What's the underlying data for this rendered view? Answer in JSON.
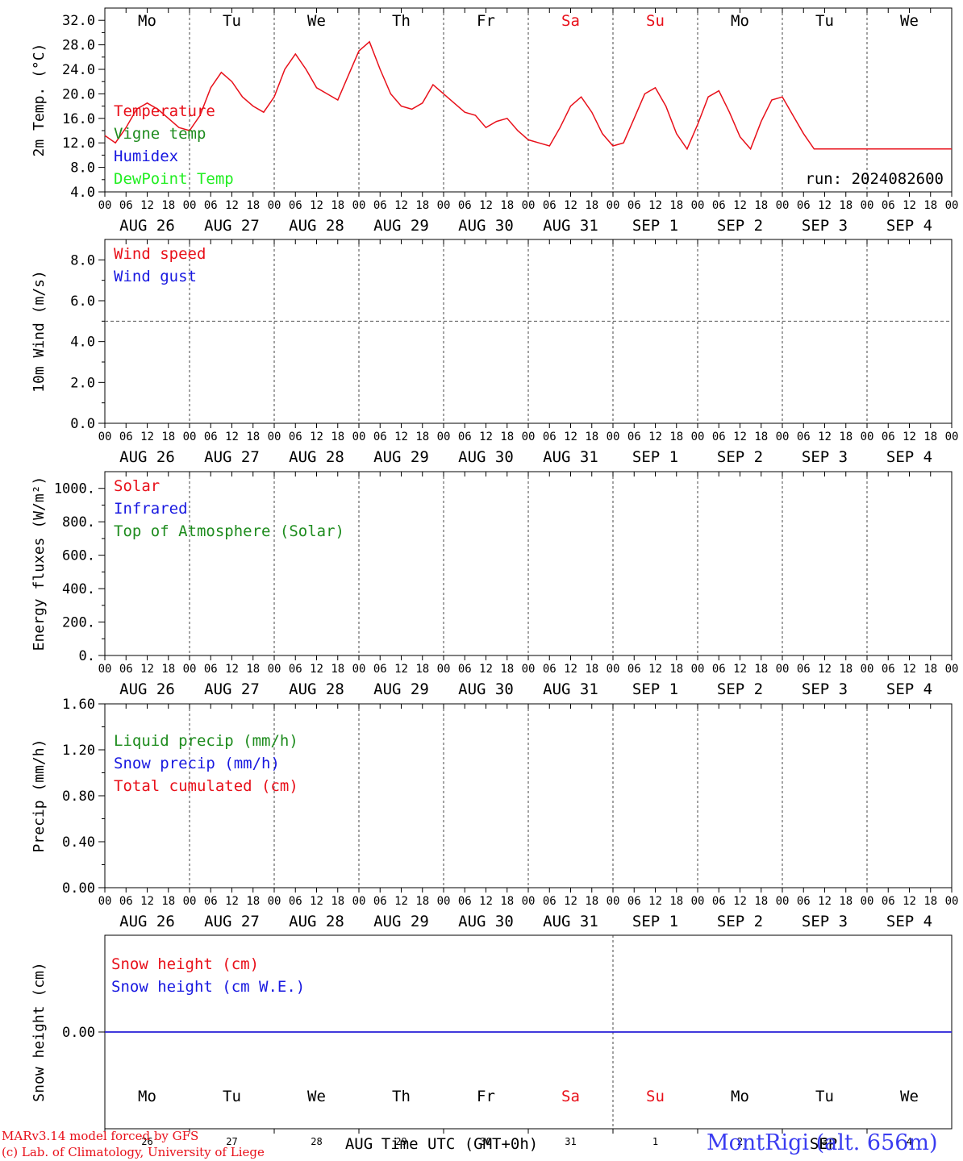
{
  "footer": {
    "model_line": "MARv3.14 model forced by GFS",
    "lab_line": "(c) Lab. of Climatology, University of Liege",
    "station": "MontRigi (alt. 656m)"
  },
  "chart_data": [
    {
      "type": "line",
      "ylabel": "2m Temp. (°C)",
      "ylim": [
        4,
        34
      ],
      "yticks": [
        "4.0",
        "8.0",
        "12.0",
        "16.0",
        "20.0",
        "24.0",
        "28.0",
        "32.0"
      ],
      "yticks_at": [
        4,
        8,
        12,
        16,
        20,
        24,
        28,
        32
      ],
      "run_label": "run: 2024082600",
      "legend_placement": "left",
      "day_names_top": true,
      "hour_ticks": [
        "00",
        "06",
        "12",
        "18"
      ],
      "date_labels": [
        "AUG 26",
        "AUG 27",
        "AUG 28",
        "AUG 29",
        "AUG 30",
        "AUG 31",
        "SEP  1",
        "SEP  2",
        "SEP  3",
        "SEP  4"
      ],
      "series": [
        {
          "name": "Temperature",
          "color": "#e8101a",
          "x": [
            0,
            3,
            6,
            9,
            12,
            15,
            18,
            21,
            24,
            27,
            30,
            33,
            36,
            39,
            42,
            45,
            48,
            51,
            54,
            57,
            60,
            63,
            66,
            69,
            72,
            75,
            78,
            81,
            84,
            87,
            90,
            93,
            96,
            99,
            102,
            105,
            108,
            111,
            114,
            117,
            120,
            123,
            126,
            129,
            132,
            135,
            138,
            141,
            144,
            147,
            150,
            153,
            156,
            159,
            162,
            165,
            168,
            171,
            174,
            177,
            180,
            183,
            186,
            189,
            192,
            195,
            198,
            201,
            204,
            207,
            210,
            213,
            216,
            219,
            222,
            225,
            228,
            231,
            234,
            237,
            240
          ],
          "y": [
            13.2,
            12.0,
            14.5,
            17.5,
            18.5,
            17.5,
            16.0,
            14.5,
            14.0,
            16.5,
            21.0,
            23.5,
            22.0,
            19.5,
            18.0,
            17.0,
            19.5,
            24.0,
            26.5,
            24.0,
            21.0,
            20.0,
            19.0,
            23.0,
            27.0,
            28.5,
            24.0,
            20.0,
            18.0,
            17.5,
            18.5,
            21.5,
            20.0,
            18.5,
            17.0,
            16.5,
            14.5,
            15.5,
            16.0,
            14.0,
            12.5,
            12.0,
            11.5,
            14.5,
            18.0,
            19.5,
            17.0,
            13.5,
            11.5,
            12.0,
            16.0,
            20.0,
            21.0,
            18.0,
            13.5,
            11.0,
            15.0,
            19.5,
            20.5,
            17.0,
            13.0,
            11.0,
            15.5,
            19.0,
            19.5,
            16.5,
            13.5,
            11.0,
            11.0,
            11.0,
            11.0,
            11.0,
            11.0,
            11.0,
            11.0,
            11.0,
            11.0,
            11.0,
            11.0,
            11.0,
            11.0
          ]
        },
        {
          "name": "Vigne temp",
          "color": "#1e8c1e",
          "x": [],
          "y": []
        },
        {
          "name": "Humidex",
          "color": "#1818e0",
          "x": [],
          "y": []
        },
        {
          "name": "DewPoint Temp",
          "color": "#22ee22",
          "x": [],
          "y": []
        }
      ]
    },
    {
      "type": "line",
      "ylabel": "10m Wind (m/s)",
      "ylim": [
        0,
        9
      ],
      "yticks": [
        "0.0",
        "2.0",
        "4.0",
        "6.0",
        "8.0"
      ],
      "yticks_at": [
        0,
        2,
        4,
        6,
        8
      ],
      "ref_line": 5,
      "hour_ticks": [
        "00",
        "06",
        "12",
        "18"
      ],
      "date_labels": [
        "AUG 26",
        "AUG 27",
        "AUG 28",
        "AUG 29",
        "AUG 30",
        "AUG 31",
        "SEP  1",
        "SEP  2",
        "SEP  3",
        "SEP  4"
      ],
      "series": [
        {
          "name": "Wind speed",
          "color": "#e8101a",
          "x": [],
          "y": []
        },
        {
          "name": "Wind gust",
          "color": "#1818e0",
          "x": [],
          "y": []
        }
      ]
    },
    {
      "type": "line",
      "ylabel": "Energy fluxes (W/m²)",
      "ylim": [
        0,
        1100
      ],
      "yticks": [
        "0.",
        "200.",
        "400.",
        "600.",
        "800.",
        "1000."
      ],
      "yticks_at": [
        0,
        200,
        400,
        600,
        800,
        1000
      ],
      "hour_ticks": [
        "00",
        "06",
        "12",
        "18"
      ],
      "date_labels": [
        "AUG 26",
        "AUG 27",
        "AUG 28",
        "AUG 29",
        "AUG 30",
        "AUG 31",
        "SEP  1",
        "SEP  2",
        "SEP  3",
        "SEP  4"
      ],
      "series": [
        {
          "name": "Solar",
          "color": "#e8101a",
          "x": [],
          "y": []
        },
        {
          "name": "Infrared",
          "color": "#1818e0",
          "x": [],
          "y": []
        },
        {
          "name": "Top of Atmosphere (Solar)",
          "color": "#1e8c1e",
          "x": [],
          "y": []
        }
      ]
    },
    {
      "type": "line",
      "ylabel": "Precip (mm/h)",
      "ylim": [
        0,
        1.6
      ],
      "yticks": [
        "0.00",
        "0.40",
        "0.80",
        "1.20",
        "1.60"
      ],
      "yticks_at": [
        0,
        0.4,
        0.8,
        1.2,
        1.6
      ],
      "hour_ticks": [
        "00",
        "06",
        "12",
        "18"
      ],
      "date_labels": [
        "AUG 26",
        "AUG 27",
        "AUG 28",
        "AUG 29",
        "AUG 30",
        "AUG 31",
        "SEP  1",
        "SEP  2",
        "SEP  3",
        "SEP  4"
      ],
      "series": [
        {
          "name": "Liquid precip (mm/h)",
          "color": "#1e8c1e",
          "x": [],
          "y": []
        },
        {
          "name": "Snow precip (mm/h)",
          "color": "#1818e0",
          "x": [],
          "y": []
        },
        {
          "name": "Total cumulated (cm)",
          "color": "#e8101a",
          "x": [],
          "y": []
        }
      ]
    },
    {
      "type": "line",
      "ylabel": "Snow height (cm)",
      "ylim": [
        -1,
        1
      ],
      "yticks": [
        "0.00"
      ],
      "yticks_at": [
        0
      ],
      "day_names_bottom": true,
      "day_numbers": [
        "26",
        "27",
        "28",
        "29",
        "30",
        "31",
        "1",
        "2",
        "3",
        "4"
      ],
      "month_labels": [
        "AUG",
        "SEP"
      ],
      "xlabel": "Time UTC (GMT+0h)",
      "series": [
        {
          "name": "Snow height (cm)",
          "color": "#e8101a",
          "x": [
            0,
            240
          ],
          "y": [
            0,
            0
          ]
        },
        {
          "name": "Snow height (cm W.E.)",
          "color": "#1818e0",
          "x": [
            0,
            240
          ],
          "y": [
            0,
            0
          ]
        }
      ]
    }
  ],
  "day_names": [
    "Mo",
    "Tu",
    "We",
    "Th",
    "Fr",
    "Sa",
    "Su",
    "Mo",
    "Tu",
    "We"
  ],
  "weekend_color": "#e8101a"
}
